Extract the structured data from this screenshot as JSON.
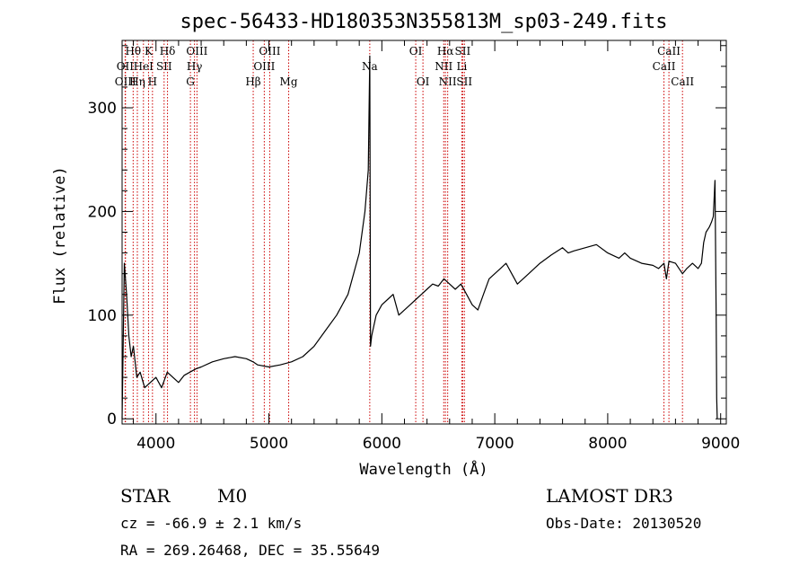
{
  "chart_data": {
    "type": "line",
    "title": "spec-56433-HD180353N355813M_sp03-249.fits",
    "xlabel": "Wavelength (Å)",
    "ylabel": "Flux (relative)",
    "xlim": [
      3700,
      9050
    ],
    "ylim": [
      -5,
      365
    ],
    "x_ticks": [
      4000,
      5000,
      6000,
      7000,
      8000,
      9000
    ],
    "y_ticks": [
      0,
      100,
      200,
      300
    ],
    "grid": false,
    "line_color": "#000000",
    "marker_color": "#cc0000",
    "lines": [
      {
        "label": "Hθ",
        "x": 3798,
        "row": 0
      },
      {
        "label": "OII",
        "x": 3727,
        "row": 1
      },
      {
        "label": "OIII",
        "x": 3730,
        "row": 2
      },
      {
        "label": "Hη",
        "x": 3835,
        "row": 2
      },
      {
        "label": "HeI",
        "x": 3889,
        "row": 1
      },
      {
        "label": "K",
        "x": 3934,
        "row": 0
      },
      {
        "label": "H",
        "x": 3969,
        "row": 2
      },
      {
        "label": "SII",
        "x": 4072,
        "row": 1
      },
      {
        "label": "Hδ",
        "x": 4102,
        "row": 0
      },
      {
        "label": "G",
        "x": 4305,
        "row": 2
      },
      {
        "label": "Hγ",
        "x": 4341,
        "row": 1
      },
      {
        "label": "OIII",
        "x": 4363,
        "row": 0
      },
      {
        "label": "Hβ",
        "x": 4861,
        "row": 2
      },
      {
        "label": "OIII",
        "x": 4959,
        "row": 1
      },
      {
        "label": "OIII",
        "x": 5007,
        "row": 0
      },
      {
        "label": "Mg",
        "x": 5175,
        "row": 2
      },
      {
        "label": "Na",
        "x": 5893,
        "row": 1
      },
      {
        "label": "OI",
        "x": 6300,
        "row": 0
      },
      {
        "label": "OI",
        "x": 6364,
        "row": 2
      },
      {
        "label": "NII",
        "x": 6548,
        "row": 1
      },
      {
        "label": "Hα",
        "x": 6563,
        "row": 0
      },
      {
        "label": "NII",
        "x": 6583,
        "row": 2
      },
      {
        "label": "Li",
        "x": 6708,
        "row": 1
      },
      {
        "label": "SII",
        "x": 6716,
        "row": 0
      },
      {
        "label": "SII",
        "x": 6731,
        "row": 2
      },
      {
        "label": "CaII",
        "x": 8498,
        "row": 1
      },
      {
        "label": "CaII",
        "x": 8542,
        "row": 0
      },
      {
        "label": "CaII",
        "x": 8662,
        "row": 2
      }
    ],
    "spectrum": {
      "x": [
        3700,
        3720,
        3740,
        3760,
        3780,
        3800,
        3830,
        3860,
        3900,
        3950,
        4000,
        4050,
        4100,
        4150,
        4200,
        4250,
        4300,
        4350,
        4400,
        4500,
        4600,
        4700,
        4800,
        4860,
        4900,
        5000,
        5100,
        5200,
        5300,
        5400,
        5500,
        5600,
        5700,
        5750,
        5800,
        5850,
        5880,
        5893,
        5900,
        5910,
        5950,
        6000,
        6050,
        6100,
        6150,
        6200,
        6250,
        6300,
        6350,
        6400,
        6450,
        6500,
        6550,
        6600,
        6650,
        6700,
        6750,
        6800,
        6850,
        6900,
        6950,
        7000,
        7050,
        7100,
        7150,
        7200,
        7250,
        7300,
        7400,
        7500,
        7600,
        7650,
        7700,
        7800,
        7900,
        8000,
        8100,
        8150,
        8200,
        8300,
        8400,
        8450,
        8498,
        8520,
        8542,
        8600,
        8662,
        8700,
        8750,
        8800,
        8830,
        8850,
        8870,
        8900,
        8920,
        8935,
        8950,
        8960,
        8965,
        8970
      ],
      "y": [
        0,
        150,
        120,
        80,
        60,
        70,
        40,
        45,
        30,
        35,
        40,
        30,
        45,
        40,
        35,
        42,
        45,
        48,
        50,
        55,
        58,
        60,
        58,
        55,
        52,
        50,
        52,
        55,
        60,
        70,
        85,
        100,
        120,
        140,
        160,
        200,
        240,
        350,
        70,
        80,
        100,
        110,
        115,
        120,
        100,
        105,
        110,
        115,
        120,
        125,
        130,
        128,
        135,
        130,
        125,
        130,
        120,
        110,
        105,
        120,
        135,
        140,
        145,
        150,
        140,
        130,
        135,
        140,
        150,
        158,
        165,
        160,
        162,
        165,
        168,
        160,
        155,
        160,
        155,
        150,
        148,
        145,
        150,
        135,
        152,
        150,
        140,
        145,
        150,
        145,
        150,
        170,
        180,
        185,
        190,
        195,
        230,
        100,
        20,
        0
      ]
    }
  },
  "footer": {
    "object_type": "STAR",
    "subclass": "M0",
    "survey": "LAMOST DR3",
    "cz": "cz = -66.9 ± 2.1 km/s",
    "obs_date": "Obs-Date: 20130520",
    "coords": "RA = 269.26468, DEC =  35.55649"
  }
}
